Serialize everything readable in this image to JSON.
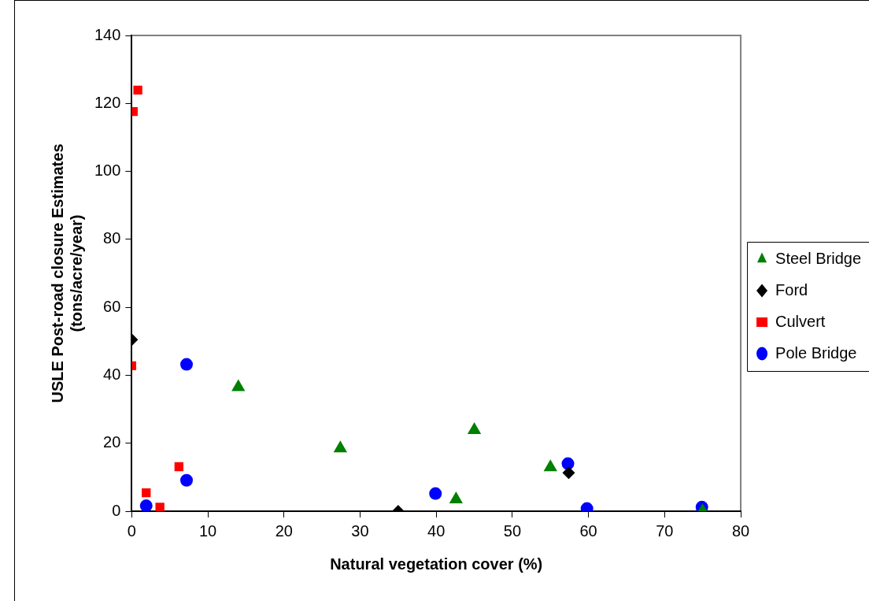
{
  "chart_data": {
    "type": "scatter",
    "xlabel": "Natural vegetation cover (%)",
    "ylabel": "USLE Post-road closure Estimates\n(tons/acre/year)",
    "xlim": [
      0,
      80
    ],
    "xticks": [
      0,
      10,
      20,
      30,
      40,
      50,
      60,
      70,
      80
    ],
    "ylim": [
      0,
      140
    ],
    "yticks": [
      0,
      20,
      40,
      60,
      80,
      100,
      120,
      140
    ],
    "grid": false,
    "legend": "right",
    "series": [
      {
        "name": "Steel Bridge",
        "color": "#008000",
        "marker": "triangle",
        "x": [
          14.0,
          27.4,
          42.6,
          45.0,
          55.0,
          75.0
        ],
        "values": [
          36.5,
          18.5,
          3.5,
          23.9,
          12.9,
          0
        ]
      },
      {
        "name": "Ford",
        "color": "#000000",
        "marker": "diamond",
        "x": [
          0,
          35,
          57.4
        ],
        "values": [
          50.5,
          0,
          11.3
        ]
      },
      {
        "name": "Culvert",
        "color": "#ff0000",
        "marker": "square",
        "x": [
          0.2,
          0.8,
          0,
          1.9,
          6.2,
          3.7
        ],
        "values": [
          117.6,
          123.9,
          42.8,
          5.4,
          13.1,
          1.2
        ]
      },
      {
        "name": "Pole Bridge",
        "color": "#0000ff",
        "marker": "circle",
        "x": [
          1.9,
          7.2,
          7.2,
          39.9,
          57.3,
          59.8,
          74.9
        ],
        "values": [
          1.6,
          9.1,
          43.2,
          5.2,
          14.0,
          0.8,
          1.2
        ]
      }
    ]
  }
}
